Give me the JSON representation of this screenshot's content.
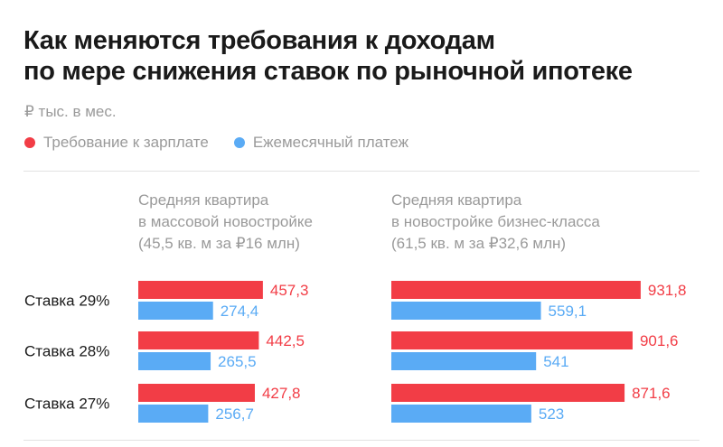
{
  "title_lines": [
    "Как меняются требования к доходам",
    "по мере снижения ставок по рыночной ипотеке"
  ],
  "unit": "₽ тыс. в мес.",
  "legend": [
    {
      "label": "Требование к зарплате",
      "color": "#f23d46"
    },
    {
      "label": "Ежемесячный платеж",
      "color": "#5aabf5"
    }
  ],
  "panels": [
    {
      "header_lines": [
        "Средняя квартира",
        "в массовой новостройке",
        "(45,5 кв. м за ₽16 млн)"
      ]
    },
    {
      "header_lines": [
        "Средняя квартира",
        "в новостройке бизнес-класса",
        "(61,5 кв. м за ₽32,6 млн)"
      ]
    }
  ],
  "chart_data": [
    {
      "type": "bar",
      "orientation": "horizontal",
      "categories": [
        "Ставка 29%",
        "Ставка 28%",
        "Ставка 27%"
      ],
      "series": [
        {
          "name": "Требование к зарплате",
          "color": "#f23d46",
          "values": [
            457.3,
            442.5,
            427.8
          ],
          "labels": [
            "457,3",
            "442,5",
            "427,8"
          ]
        },
        {
          "name": "Ежемесячный платеж",
          "color": "#5aabf5",
          "values": [
            274.4,
            265.5,
            256.7
          ],
          "labels": [
            "274,4",
            "265,5",
            "256,7"
          ]
        }
      ]
    },
    {
      "type": "bar",
      "orientation": "horizontal",
      "categories": [
        "Ставка 29%",
        "Ставка 28%",
        "Ставка 27%"
      ],
      "series": [
        {
          "name": "Требование к зарплате",
          "color": "#f23d46",
          "values": [
            931.8,
            901.6,
            871.6
          ],
          "labels": [
            "931,8",
            "901,6",
            "871,6"
          ]
        },
        {
          "name": "Ежемесячный платеж",
          "color": "#5aabf5",
          "values": [
            559.1,
            541,
            523
          ],
          "labels": [
            "559,1",
            "541",
            "523"
          ]
        }
      ]
    }
  ]
}
